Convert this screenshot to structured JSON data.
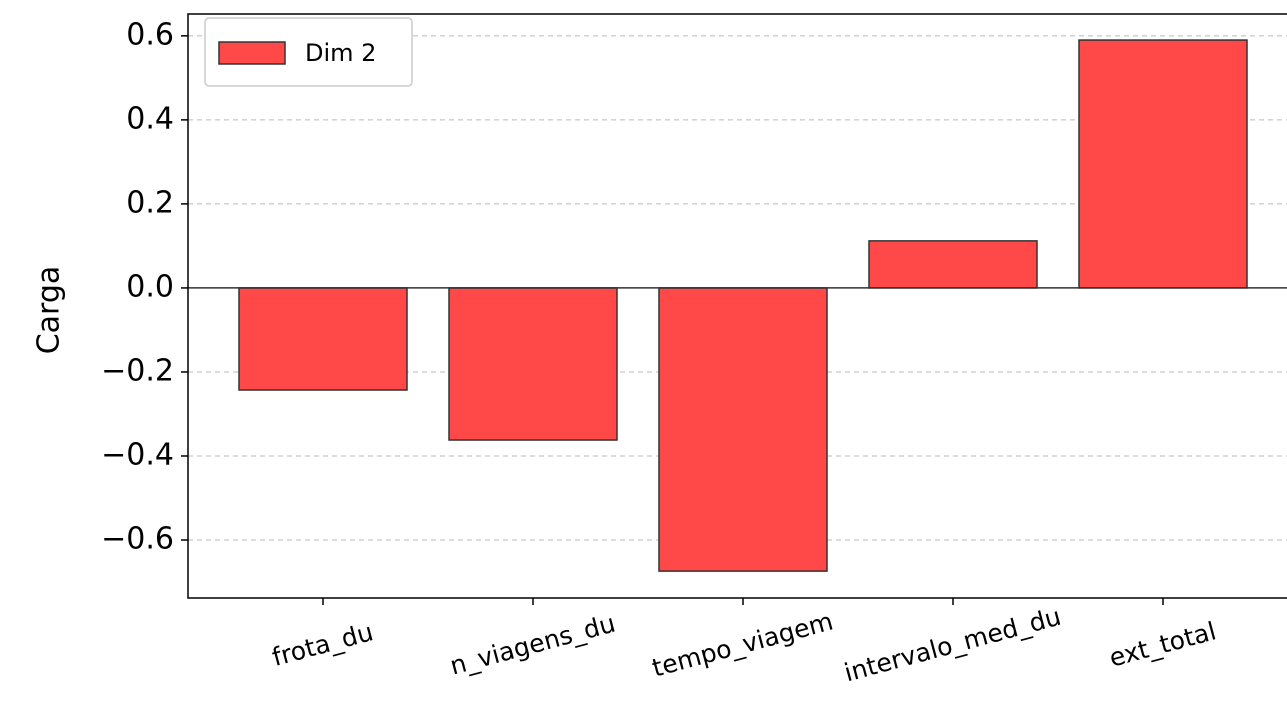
{
  "chart_data": {
    "type": "bar",
    "ylabel": "Carga",
    "categories": [
      "frota_du",
      "n_viagens_du",
      "tempo_viagem",
      "intervalo_med_du",
      "ext_total"
    ],
    "series": [
      {
        "name": "Dim 2",
        "color": "#ff4848",
        "values": [
          -0.243,
          -0.362,
          -0.674,
          0.112,
          0.59
        ]
      }
    ],
    "ylim": [
      -0.738,
      0.652
    ],
    "yticks": [
      {
        "value": -0.6,
        "label": "−0.6"
      },
      {
        "value": -0.4,
        "label": "−0.4"
      },
      {
        "value": -0.2,
        "label": "−0.2"
      },
      {
        "value": 0,
        "label": "0.0"
      },
      0.2,
      0.4,
      0.6
    ],
    "grid": true,
    "legend": "upper left"
  }
}
